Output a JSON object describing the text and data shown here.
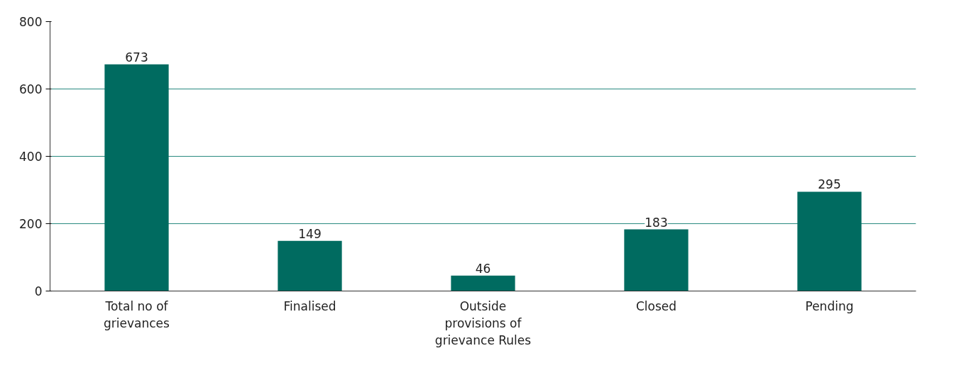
{
  "chart_data": {
    "type": "bar",
    "categories": [
      "Total no of grievances",
      "Finalised",
      "Outside provisions of grievance Rules",
      "Closed",
      "Pending"
    ],
    "values": [
      673,
      149,
      46,
      183,
      295
    ],
    "color": "#006b60",
    "ylim": [
      0,
      800
    ],
    "yticks": [
      0,
      200,
      400,
      600,
      800
    ],
    "grid": "y",
    "data_labels": true
  }
}
